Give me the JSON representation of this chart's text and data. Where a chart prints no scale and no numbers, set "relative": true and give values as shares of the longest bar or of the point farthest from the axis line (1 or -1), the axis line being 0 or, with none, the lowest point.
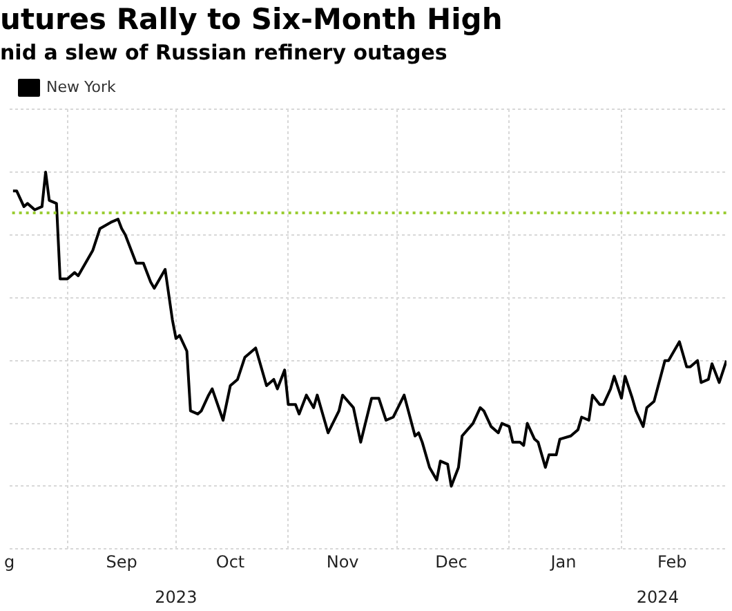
{
  "chart_data": {
    "type": "line",
    "title": "utures Rally to Six-Month High",
    "subtitle": "nid a slew of Russian refinery outages",
    "relative": true,
    "grid": true,
    "legend": "top left",
    "marker": "none",
    "line_style": "solid",
    "xlim": [
      "2023-08-16",
      "2024-03-01"
    ],
    "xticks": [
      {
        "value": "2023-08-16",
        "label": "g"
      },
      {
        "value": "2023-09-01",
        "label": null
      },
      {
        "value": "2023-09-16",
        "label": "Sep"
      },
      {
        "value": "2023-10-01",
        "label": null
      },
      {
        "value": "2023-10-16",
        "label": "Oct"
      },
      {
        "value": "2023-11-01",
        "label": null
      },
      {
        "value": "2023-11-16",
        "label": "Nov"
      },
      {
        "value": "2023-12-01",
        "label": null
      },
      {
        "value": "2023-12-16",
        "label": "Dec"
      },
      {
        "value": "2024-01-01",
        "label": null
      },
      {
        "value": "2024-01-16",
        "label": "Jan"
      },
      {
        "value": "2024-02-01",
        "label": null
      },
      {
        "value": "2024-02-15",
        "label": "Feb"
      }
    ],
    "x2lim": [
      "2023-08-16",
      "2024-03-01"
    ],
    "x2ticks": [
      {
        "value": "2023-10-01",
        "label": "2023"
      },
      {
        "value": "2024-02-11",
        "label": "2024"
      }
    ],
    "ref_lines": [
      {
        "axis": "y",
        "value": 0.87,
        "label": null,
        "color": "#9acd32",
        "line_style": "dotted"
      }
    ],
    "series": [
      {
        "name": "New York",
        "color": "#000000",
        "x": [
          "2023-08-17",
          "2023-08-18",
          "2023-08-20",
          "2023-08-21",
          "2023-08-23",
          "2023-08-25",
          "2023-08-26",
          "2023-08-27",
          "2023-08-29",
          "2023-08-30",
          "2023-09-01",
          "2023-09-03",
          "2023-09-04",
          "2023-09-08",
          "2023-09-10",
          "2023-09-13",
          "2023-09-15",
          "2023-09-16",
          "2023-09-17",
          "2023-09-20",
          "2023-09-22",
          "2023-09-24",
          "2023-09-25",
          "2023-09-26",
          "2023-09-28",
          "2023-09-30",
          "2023-10-01",
          "2023-10-02",
          "2023-10-04",
          "2023-10-05",
          "2023-10-07",
          "2023-10-08",
          "2023-10-10",
          "2023-10-11",
          "2023-10-14",
          "2023-10-16",
          "2023-10-18",
          "2023-10-20",
          "2023-10-23",
          "2023-10-26",
          "2023-10-28",
          "2023-10-29",
          "2023-10-31",
          "2023-11-01",
          "2023-11-03",
          "2023-11-04",
          "2023-11-06",
          "2023-11-08",
          "2023-11-09",
          "2023-11-12",
          "2023-11-15",
          "2023-11-16",
          "2023-11-19",
          "2023-11-21",
          "2023-11-24",
          "2023-11-26",
          "2023-11-28",
          "2023-11-30",
          "2023-12-03",
          "2023-12-06",
          "2023-12-07",
          "2023-12-08",
          "2023-12-10",
          "2023-12-12",
          "2023-12-13",
          "2023-12-15",
          "2023-12-16",
          "2023-12-18",
          "2023-12-19",
          "2023-12-22",
          "2023-12-24",
          "2023-12-25",
          "2023-12-27",
          "2023-12-29",
          "2023-12-30",
          "2024-01-01",
          "2024-01-02",
          "2024-01-04",
          "2024-01-05",
          "2024-01-06",
          "2024-01-08",
          "2024-01-09",
          "2024-01-11",
          "2024-01-12",
          "2024-01-14",
          "2024-01-15",
          "2024-01-18",
          "2024-01-20",
          "2024-01-21",
          "2024-01-23",
          "2024-01-24",
          "2024-01-26",
          "2024-01-27",
          "2024-01-29",
          "2024-01-30",
          "2024-02-01",
          "2024-02-02",
          "2024-02-04",
          "2024-02-05",
          "2024-02-07",
          "2024-02-08",
          "2024-02-10",
          "2024-02-13",
          "2024-02-14",
          "2024-02-17",
          "2024-02-19",
          "2024-02-20",
          "2024-02-22",
          "2024-02-23",
          "2024-02-25",
          "2024-02-26",
          "2024-02-28",
          "2024-03-01"
        ],
        "values": [
          0.94,
          0.94,
          0.89,
          0.9,
          0.88,
          0.89,
          1.0,
          0.91,
          0.9,
          0.66,
          0.66,
          0.68,
          0.67,
          0.75,
          0.82,
          0.84,
          0.85,
          0.82,
          0.8,
          0.71,
          0.71,
          0.65,
          0.63,
          0.65,
          0.69,
          0.53,
          0.47,
          0.48,
          0.43,
          0.24,
          0.23,
          0.24,
          0.29,
          0.31,
          0.21,
          0.32,
          0.34,
          0.41,
          0.44,
          0.32,
          0.34,
          0.31,
          0.37,
          0.26,
          0.26,
          0.23,
          0.29,
          0.25,
          0.29,
          0.17,
          0.24,
          0.29,
          0.25,
          0.14,
          0.28,
          0.28,
          0.21,
          0.22,
          0.29,
          0.16,
          0.17,
          0.14,
          0.06,
          0.02,
          0.08,
          0.07,
          0.0,
          0.06,
          0.16,
          0.2,
          0.25,
          0.24,
          0.19,
          0.17,
          0.2,
          0.19,
          0.14,
          0.14,
          0.13,
          0.2,
          0.15,
          0.14,
          0.06,
          0.1,
          0.1,
          0.15,
          0.16,
          0.18,
          0.22,
          0.21,
          0.29,
          0.26,
          0.26,
          0.31,
          0.35,
          0.28,
          0.35,
          0.28,
          0.24,
          0.19,
          0.25,
          0.27,
          0.4,
          0.4,
          0.46,
          0.38,
          0.38,
          0.4,
          0.33,
          0.34,
          0.39,
          0.33,
          0.4
        ]
      }
    ]
  }
}
